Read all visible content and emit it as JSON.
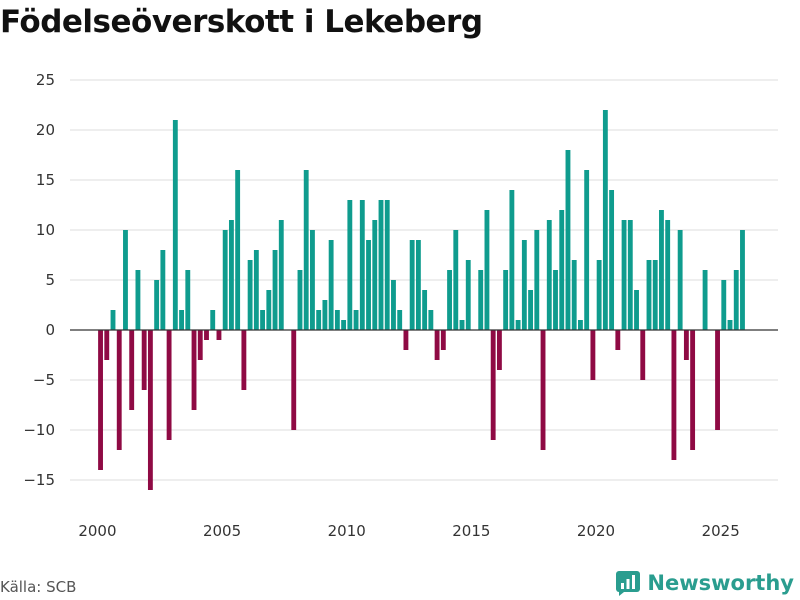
{
  "chart_data": {
    "type": "bar",
    "title": "Födelseöverskott i Lekeberg",
    "xlabel": "",
    "ylabel": "",
    "xlim": [
      1998.9,
      2027.3
    ],
    "ylim": [
      -17.5,
      27
    ],
    "yticks": [
      25,
      20,
      15,
      10,
      5,
      0,
      -5,
      -10,
      -15
    ],
    "xticks": [
      2000,
      2005,
      2010,
      2015,
      2020,
      2025
    ],
    "colors": {
      "positive": "#0f9c8e",
      "negative": "#8f0a44"
    },
    "series": [
      {
        "name": "Födelseöverskott",
        "frequency": "quarterly",
        "data": [
          {
            "x": 2000.125,
            "y": -14
          },
          {
            "x": 2000.375,
            "y": -3
          },
          {
            "x": 2000.625,
            "y": 2
          },
          {
            "x": 2000.875,
            "y": -12
          },
          {
            "x": 2001.125,
            "y": 10
          },
          {
            "x": 2001.375,
            "y": -8
          },
          {
            "x": 2001.625,
            "y": 6
          },
          {
            "x": 2001.875,
            "y": -6
          },
          {
            "x": 2002.125,
            "y": -16
          },
          {
            "x": 2002.375,
            "y": 5
          },
          {
            "x": 2002.625,
            "y": 8
          },
          {
            "x": 2002.875,
            "y": -11
          },
          {
            "x": 2003.125,
            "y": 21
          },
          {
            "x": 2003.375,
            "y": 2
          },
          {
            "x": 2003.625,
            "y": 6
          },
          {
            "x": 2003.875,
            "y": -8
          },
          {
            "x": 2004.125,
            "y": -3
          },
          {
            "x": 2004.375,
            "y": -1
          },
          {
            "x": 2004.625,
            "y": 2
          },
          {
            "x": 2004.875,
            "y": -1
          },
          {
            "x": 2005.125,
            "y": 10
          },
          {
            "x": 2005.375,
            "y": 11
          },
          {
            "x": 2005.625,
            "y": 16
          },
          {
            "x": 2005.875,
            "y": -6
          },
          {
            "x": 2006.125,
            "y": 7
          },
          {
            "x": 2006.375,
            "y": 8
          },
          {
            "x": 2006.625,
            "y": 2
          },
          {
            "x": 2006.875,
            "y": 4
          },
          {
            "x": 2007.125,
            "y": 8
          },
          {
            "x": 2007.375,
            "y": 11
          },
          {
            "x": 2007.625,
            "y": 0
          },
          {
            "x": 2007.875,
            "y": -10
          },
          {
            "x": 2008.125,
            "y": 6
          },
          {
            "x": 2008.375,
            "y": 16
          },
          {
            "x": 2008.625,
            "y": 10
          },
          {
            "x": 2008.875,
            "y": 2
          },
          {
            "x": 2009.125,
            "y": 3
          },
          {
            "x": 2009.375,
            "y": 9
          },
          {
            "x": 2009.625,
            "y": 2
          },
          {
            "x": 2009.875,
            "y": 1
          },
          {
            "x": 2010.125,
            "y": 13
          },
          {
            "x": 2010.375,
            "y": 2
          },
          {
            "x": 2010.625,
            "y": 13
          },
          {
            "x": 2010.875,
            "y": 9
          },
          {
            "x": 2011.125,
            "y": 11
          },
          {
            "x": 2011.375,
            "y": 13
          },
          {
            "x": 2011.625,
            "y": 13
          },
          {
            "x": 2011.875,
            "y": 5
          },
          {
            "x": 2012.125,
            "y": 2
          },
          {
            "x": 2012.375,
            "y": -2
          },
          {
            "x": 2012.625,
            "y": 9
          },
          {
            "x": 2012.875,
            "y": 9
          },
          {
            "x": 2013.125,
            "y": 4
          },
          {
            "x": 2013.375,
            "y": 2
          },
          {
            "x": 2013.625,
            "y": -3
          },
          {
            "x": 2013.875,
            "y": -2
          },
          {
            "x": 2014.125,
            "y": 6
          },
          {
            "x": 2014.375,
            "y": 10
          },
          {
            "x": 2014.625,
            "y": 1
          },
          {
            "x": 2014.875,
            "y": 7
          },
          {
            "x": 2015.125,
            "y": 0
          },
          {
            "x": 2015.375,
            "y": 6
          },
          {
            "x": 2015.625,
            "y": 12
          },
          {
            "x": 2015.875,
            "y": -11
          },
          {
            "x": 2016.125,
            "y": -4
          },
          {
            "x": 2016.375,
            "y": 6
          },
          {
            "x": 2016.625,
            "y": 14
          },
          {
            "x": 2016.875,
            "y": 1
          },
          {
            "x": 2017.125,
            "y": 9
          },
          {
            "x": 2017.375,
            "y": 4
          },
          {
            "x": 2017.625,
            "y": 10
          },
          {
            "x": 2017.875,
            "y": -12
          },
          {
            "x": 2018.125,
            "y": 11
          },
          {
            "x": 2018.375,
            "y": 6
          },
          {
            "x": 2018.625,
            "y": 12
          },
          {
            "x": 2018.875,
            "y": 18
          },
          {
            "x": 2019.125,
            "y": 7
          },
          {
            "x": 2019.375,
            "y": 1
          },
          {
            "x": 2019.625,
            "y": 16
          },
          {
            "x": 2019.875,
            "y": -5
          },
          {
            "x": 2020.125,
            "y": 7
          },
          {
            "x": 2020.375,
            "y": 22
          },
          {
            "x": 2020.625,
            "y": 14
          },
          {
            "x": 2020.875,
            "y": -2
          },
          {
            "x": 2021.125,
            "y": 11
          },
          {
            "x": 2021.375,
            "y": 11
          },
          {
            "x": 2021.625,
            "y": 4
          },
          {
            "x": 2021.875,
            "y": -5
          },
          {
            "x": 2022.125,
            "y": 7
          },
          {
            "x": 2022.375,
            "y": 7
          },
          {
            "x": 2022.625,
            "y": 12
          },
          {
            "x": 2022.875,
            "y": 11
          },
          {
            "x": 2023.125,
            "y": -13
          },
          {
            "x": 2023.375,
            "y": 10
          },
          {
            "x": 2023.625,
            "y": -3
          },
          {
            "x": 2023.875,
            "y": -12
          },
          {
            "x": 2024.125,
            "y": 0
          },
          {
            "x": 2024.375,
            "y": 6
          },
          {
            "x": 2024.625,
            "y": 0
          },
          {
            "x": 2024.875,
            "y": -10
          },
          {
            "x": 2025.125,
            "y": 5
          },
          {
            "x": 2025.375,
            "y": 1
          },
          {
            "x": 2025.625,
            "y": 6
          },
          {
            "x": 2025.875,
            "y": 10
          }
        ]
      }
    ]
  },
  "footer": {
    "source": "Källa: SCB",
    "brand": "Newsworthy"
  },
  "icons": {
    "brand_logo": "newsworthy-logo-icon"
  }
}
